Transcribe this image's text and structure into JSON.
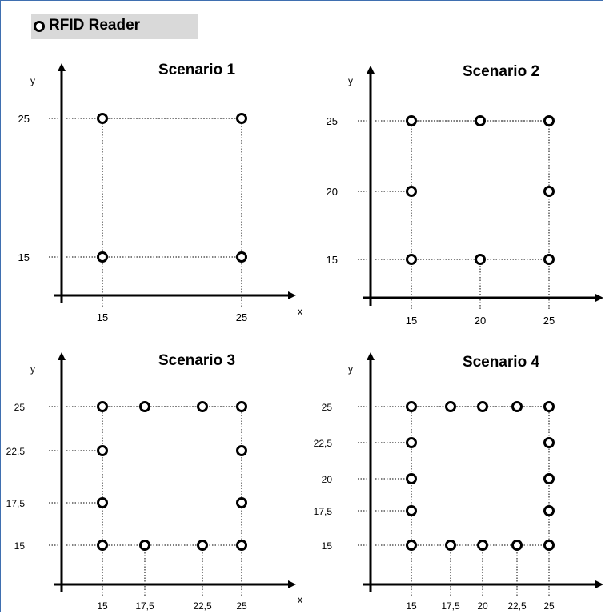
{
  "legend": {
    "label": "RFID Reader",
    "symbol": "ring"
  },
  "axis_labels": {
    "x": "x",
    "y": "y"
  },
  "colors": {
    "frame": "#3f6fb0",
    "legend_bg": "#d9d9d9",
    "ink": "#000000"
  },
  "scenarios": [
    {
      "title": "Scenario 1",
      "x_ticks": [
        "15",
        "25"
      ],
      "y_ticks": [
        "25",
        "15"
      ],
      "readers": [
        [
          15,
          25
        ],
        [
          25,
          25
        ],
        [
          15,
          15
        ],
        [
          25,
          15
        ]
      ]
    },
    {
      "title": "Scenario 2",
      "x_ticks": [
        "15",
        "20",
        "25"
      ],
      "y_ticks": [
        "25",
        "20",
        "15"
      ],
      "readers": [
        [
          15,
          25
        ],
        [
          20,
          25
        ],
        [
          25,
          25
        ],
        [
          15,
          20
        ],
        [
          25,
          20
        ],
        [
          15,
          15
        ],
        [
          20,
          15
        ],
        [
          25,
          15
        ]
      ]
    },
    {
      "title": "Scenario 3",
      "x_ticks": [
        "15",
        "17,5",
        "22,5",
        "25"
      ],
      "y_ticks": [
        "25",
        "22,5",
        "17,5",
        "15"
      ],
      "readers": [
        [
          15,
          25
        ],
        [
          17.5,
          25
        ],
        [
          22.5,
          25
        ],
        [
          25,
          25
        ],
        [
          15,
          22.5
        ],
        [
          25,
          22.5
        ],
        [
          15,
          17.5
        ],
        [
          25,
          17.5
        ],
        [
          15,
          15
        ],
        [
          17.5,
          15
        ],
        [
          22.5,
          15
        ],
        [
          25,
          15
        ]
      ]
    },
    {
      "title": "Scenario 4",
      "x_ticks": [
        "15",
        "17,5",
        "20",
        "22,5",
        "25"
      ],
      "y_ticks": [
        "25",
        "22,5",
        "20",
        "17,5",
        "15"
      ],
      "readers": [
        [
          15,
          25
        ],
        [
          17.5,
          25
        ],
        [
          20,
          25
        ],
        [
          22.5,
          25
        ],
        [
          25,
          25
        ],
        [
          15,
          22.5
        ],
        [
          25,
          22.5
        ],
        [
          15,
          20
        ],
        [
          25,
          20
        ],
        [
          15,
          17.5
        ],
        [
          25,
          17.5
        ],
        [
          15,
          15
        ],
        [
          17.5,
          15
        ],
        [
          20,
          15
        ],
        [
          22.5,
          15
        ],
        [
          25,
          15
        ]
      ]
    }
  ]
}
